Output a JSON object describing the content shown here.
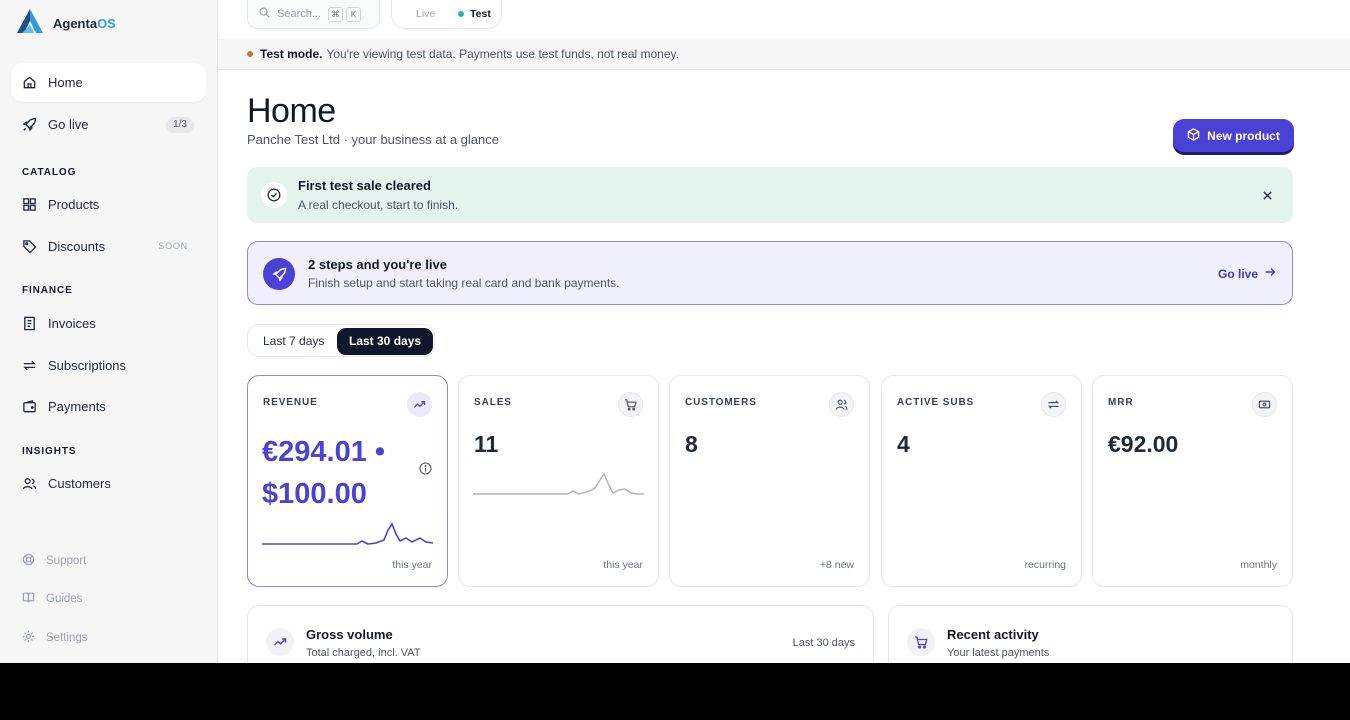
{
  "brand": {
    "name_part1": "Agenta",
    "name_part2": "OS"
  },
  "sidebar": {
    "home": "Home",
    "golive": {
      "label": "Go live",
      "badge": "1/3"
    },
    "catalog_label": "CATALOG",
    "products": "Products",
    "discounts": {
      "label": "Discounts",
      "tag": "SOON"
    },
    "finance_label": "FINANCE",
    "invoices": "Invoices",
    "subscriptions": "Subscriptions",
    "payments": "Payments",
    "insights_label": "INSIGHTS",
    "customers": "Customers",
    "support": "Support",
    "guides": "Guides",
    "settings": "Settings"
  },
  "topbar": {
    "search_placeholder": "Search...",
    "kbd1": "⌘",
    "kbd2": "K",
    "mode_live": "Live",
    "mode_test": "Test"
  },
  "test_banner": {
    "strong": "Test mode.",
    "text": "You're viewing test data. Payments use test funds, not real money."
  },
  "header": {
    "title": "Home",
    "subtitle": "Panche Test Ltd · your business at a glance",
    "new_product": "New product"
  },
  "alert": {
    "title": "First test sale cleared",
    "subtitle": "A real checkout, start to finish."
  },
  "golive_banner": {
    "title": "2 steps and you're live",
    "subtitle": "Finish setup and start taking real card and bank payments.",
    "link": "Go live"
  },
  "range": {
    "opt1": "Last 7 days",
    "opt2": "Last 30 days",
    "selected": "Last 30 days"
  },
  "cards": {
    "revenue": {
      "label": "REVENUE",
      "value": "€294.01 • $100.00",
      "foot": "this year"
    },
    "sales": {
      "label": "SALES",
      "value": "11",
      "foot": "this year"
    },
    "customers": {
      "label": "CUSTOMERS",
      "value": "8",
      "foot": "+8 new"
    },
    "subs": {
      "label": "ACTIVE SUBS",
      "value": "4",
      "foot": "recurring"
    },
    "mrr": {
      "label": "MRR",
      "value": "€92.00",
      "foot": "monthly"
    }
  },
  "panels": {
    "gross": {
      "title": "Gross volume",
      "subtitle": "Total charged, incl. VAT",
      "right": "Last 30 days"
    },
    "activity": {
      "title": "Recent activity",
      "subtitle": "Your latest payments"
    }
  },
  "colors": {
    "accent": "#4a42d6",
    "success_bg": "#e3f4ee",
    "test_dot": "#2bb5a4",
    "warning_dot": "#c2783b"
  }
}
